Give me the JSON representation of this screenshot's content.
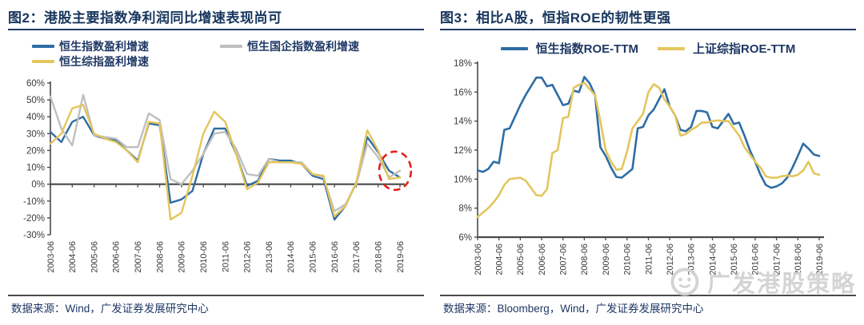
{
  "watermark": {
    "text": "广发港股策略"
  },
  "colors": {
    "title_navy": "#17365d",
    "text_navy": "#1f3864",
    "axis": "#4a4a4a",
    "tick_label": "#3b3b3b",
    "annotation_red": "#e2231a",
    "watermark_gray": "#d2d2d2"
  },
  "figures": [
    {
      "id": "fig2",
      "title": "图2：港股主要指数净利润同比增速表现尚可",
      "source": "数据来源：Wind，广发证券发展研究中心",
      "legend": [
        {
          "label": "恒生指数盈利增速",
          "color": "#2e6da4"
        },
        {
          "label": "恒生国企指数盈利增速",
          "color": "#bfbfbf"
        },
        {
          "label": "恒生综指盈利增速",
          "color": "#e3c65d"
        }
      ],
      "chart_data": {
        "type": "line",
        "title": "港股主要指数净利润同比增速表现尚可",
        "x_frequency": "semiannual",
        "x_start": "2003-06",
        "x_end": "2019-06",
        "x_tick_labels": [
          "2003-06",
          "2004-06",
          "2005-06",
          "2006-06",
          "2007-06",
          "2008-06",
          "2009-06",
          "2010-06",
          "2011-06",
          "2012-06",
          "2013-06",
          "2014-06",
          "2015-06",
          "2016-06",
          "2017-06",
          "2018-06",
          "2019-06"
        ],
        "y_ticks": [
          "60%",
          "50%",
          "40%",
          "30%",
          "20%",
          "10%",
          "0%",
          "-10%",
          "-20%",
          "-30%"
        ],
        "ylim": [
          -30,
          60
        ],
        "unit": "%",
        "grid": false,
        "series": [
          {
            "name": "恒生指数盈利增速",
            "color": "#2e6da4",
            "values": [
              31,
              25,
              37,
              40,
              29,
              27,
              26,
              20,
              14,
              36,
              35,
              -11,
              -9,
              -4,
              18,
              33,
              33,
              18,
              -1,
              2,
              15,
              14,
              14,
              12,
              5,
              3,
              -21,
              -13,
              1,
              28,
              19,
              8,
              4
            ]
          },
          {
            "name": "恒生国企指数盈利增速",
            "color": "#bfbfbf",
            "values": [
              52,
              33,
              23,
              53,
              29,
              28,
              27,
              22,
              22,
              42,
              38,
              3,
              0,
              8,
              18,
              30,
              31,
              21,
              6,
              5,
              15,
              13,
              13,
              13,
              6,
              4,
              -16,
              -12,
              0,
              24,
              16,
              4,
              8
            ]
          },
          {
            "name": "恒生综指盈利增速",
            "color": "#e3c65d",
            "values": [
              24,
              30,
              45,
              47,
              30,
              27,
              25,
              20,
              13,
              37,
              36,
              -21,
              -17,
              5,
              30,
              43,
              37,
              18,
              -3,
              1,
              13,
              13,
              13,
              12,
              6,
              5,
              -19,
              -13,
              1,
              32,
              20,
              3,
              4
            ]
          }
        ],
        "annotation": {
          "shape": "dashed-ellipse",
          "color": "#e2231a",
          "x_index": 31.55,
          "y_value": 8,
          "meaning": "highlight of latest readings"
        }
      }
    },
    {
      "id": "fig3",
      "title": "图3：相比A股，恒指ROE的韧性更强",
      "source": "数据来源：Bloomberg，Wind，广发证券发展研究中心",
      "legend": [
        {
          "label": "恒生指数ROE-TTM",
          "color": "#2e6da4"
        },
        {
          "label": "上证综指ROE-TTM",
          "color": "#e3c65d"
        }
      ],
      "chart_data": {
        "type": "line",
        "title": "相比A股，恒指ROE的韧性更强",
        "x_frequency": "quarterly",
        "x_start": "2003-06",
        "x_end": "2019-06",
        "x_tick_labels": [
          "2003-06",
          "2004-06",
          "2005-06",
          "2006-06",
          "2007-06",
          "2008-06",
          "2009-06",
          "2010-06",
          "2011-06",
          "2012-06",
          "2013-06",
          "2014-06",
          "2015-06",
          "2016-06",
          "2017-06",
          "2018-06",
          "2019-06"
        ],
        "y_ticks": [
          "18%",
          "16%",
          "14%",
          "12%",
          "10%",
          "8%",
          "6%"
        ],
        "ylim": [
          6,
          18
        ],
        "unit": "%",
        "grid": false,
        "series": [
          {
            "name": "恒生指数ROE-TTM",
            "color": "#2e6da4",
            "values": [
              10.6,
              10.5,
              10.7,
              11.2,
              11.1,
              13.4,
              13.5,
              14.3,
              15.1,
              15.8,
              16.4,
              17.0,
              17.0,
              16.4,
              16.5,
              15.8,
              15.1,
              15.2,
              16.1,
              16.0,
              17.05,
              16.6,
              15.8,
              12.2,
              11.6,
              10.8,
              10.15,
              10.1,
              10.4,
              10.7,
              13.5,
              13.6,
              14.4,
              14.8,
              15.5,
              16.2,
              15.0,
              14.4,
              13.4,
              13.3,
              13.6,
              14.7,
              14.7,
              14.6,
              13.6,
              13.5,
              14.0,
              14.5,
              13.8,
              13.9,
              13.0,
              12.0,
              11.2,
              10.3,
              9.6,
              9.4,
              9.5,
              9.7,
              10.1,
              10.8,
              11.6,
              12.45,
              12.1,
              11.7,
              11.6
            ]
          },
          {
            "name": "上证综指ROE-TTM",
            "color": "#e3c65d",
            "values": [
              7.4,
              7.7,
              8.0,
              8.4,
              8.9,
              9.6,
              10.0,
              10.05,
              10.1,
              9.9,
              9.4,
              8.9,
              8.85,
              9.3,
              11.8,
              12.0,
              14.2,
              14.3,
              16.3,
              16.5,
              16.65,
              16.2,
              15.8,
              14.0,
              12.0,
              11.2,
              10.65,
              10.7,
              11.9,
              13.5,
              14.0,
              14.5,
              16.0,
              16.55,
              16.3,
              15.5,
              15.0,
              14.4,
              13.0,
              13.1,
              13.4,
              13.6,
              13.9,
              13.9,
              14.0,
              14.05,
              14.0,
              14.0,
              13.5,
              13.0,
              12.2,
              11.7,
              11.2,
              10.8,
              10.2,
              10.1,
              10.1,
              10.2,
              10.25,
              10.2,
              10.3,
              10.6,
              11.2,
              10.4,
              10.3
            ]
          }
        ]
      }
    }
  ]
}
